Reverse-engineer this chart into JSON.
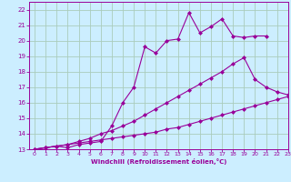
{
  "background_color": "#cceeff",
  "grid_color": "#aaccbb",
  "line_color": "#990099",
  "xlabel": "Windchill (Refroidissement éolien,°C)",
  "xlabel_color": "#990099",
  "xlim": [
    -0.5,
    23
  ],
  "ylim": [
    13,
    22.5
  ],
  "yticks": [
    13,
    14,
    15,
    16,
    17,
    18,
    19,
    20,
    21,
    22
  ],
  "xticks": [
    0,
    1,
    2,
    3,
    4,
    5,
    6,
    7,
    8,
    9,
    10,
    11,
    12,
    13,
    14,
    15,
    16,
    17,
    18,
    19,
    20,
    21,
    22,
    23
  ],
  "series": [
    {
      "x": [
        0,
        1,
        2,
        3,
        4,
        5,
        6,
        7,
        8,
        9,
        10,
        11,
        12,
        13,
        14,
        15,
        16,
        17,
        18,
        19,
        20,
        21,
        22,
        23
      ],
      "y": [
        13.0,
        13.1,
        13.2,
        13.3,
        13.4,
        13.5,
        13.6,
        13.7,
        13.8,
        13.9,
        14.0,
        14.1,
        14.3,
        14.4,
        14.6,
        14.8,
        15.0,
        15.2,
        15.4,
        15.6,
        15.8,
        16.0,
        16.2,
        16.4
      ]
    },
    {
      "x": [
        0,
        1,
        2,
        3,
        4,
        5,
        6,
        7,
        8,
        9,
        10,
        11,
        12,
        13,
        14,
        15,
        16,
        17,
        18,
        19,
        20,
        21,
        22,
        23
      ],
      "y": [
        13.0,
        13.1,
        13.2,
        13.3,
        13.5,
        13.7,
        14.0,
        14.2,
        14.5,
        14.8,
        15.2,
        15.6,
        16.0,
        16.4,
        16.8,
        17.2,
        17.6,
        18.0,
        18.5,
        18.9,
        17.5,
        17.0,
        16.7,
        16.5
      ]
    },
    {
      "x": [
        0,
        1,
        2,
        3,
        4,
        5,
        6,
        7,
        8,
        9,
        10,
        11,
        12,
        13,
        14,
        15,
        16,
        17,
        18,
        19,
        20,
        21
      ],
      "y": [
        13.0,
        13.1,
        13.2,
        13.1,
        13.3,
        13.4,
        13.5,
        14.5,
        16.0,
        17.0,
        19.6,
        19.2,
        20.0,
        20.1,
        21.8,
        20.5,
        20.9,
        21.4,
        20.3,
        20.2,
        20.3,
        20.3
      ]
    }
  ]
}
